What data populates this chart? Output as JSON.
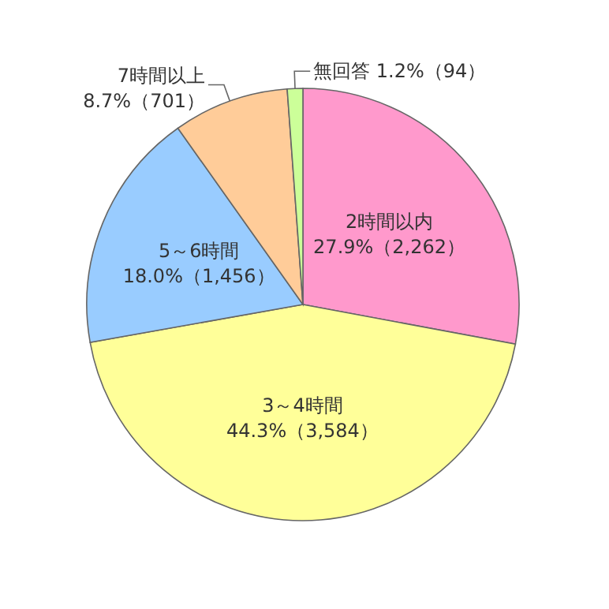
{
  "chart_data": {
    "type": "pie",
    "categories": [
      "2時間以内",
      "3～4時間",
      "5～6時間",
      "7時間以上",
      "無回答"
    ],
    "values": [
      2262,
      3584,
      1456,
      701,
      94
    ],
    "value_labels": [
      "27.9%（2,262）",
      "44.3%（3,584）",
      "18.0%（1,456）",
      "8.7%（701）",
      "1.2%（94）"
    ],
    "colors": [
      "#ff99cc",
      "#ffff99",
      "#99ccff",
      "#ffcc99",
      "#ccff99"
    ],
    "legend": false
  }
}
